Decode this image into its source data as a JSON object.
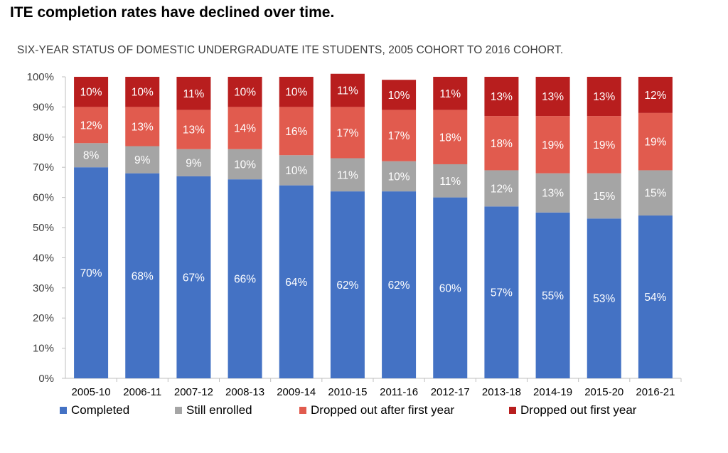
{
  "title": "ITE completion rates have declined over time.",
  "subtitle": "SIX-YEAR STATUS OF DOMESTIC UNDERGRADUATE ITE STUDENTS, 2005 COHORT TO 2016 COHORT.",
  "chart_data": {
    "type": "bar",
    "stacked": true,
    "categories": [
      "2005-10",
      "2006-11",
      "2007-12",
      "2008-13",
      "2009-14",
      "2010-15",
      "2011-16",
      "2012-17",
      "2013-18",
      "2014-19",
      "2015-20",
      "2016-21"
    ],
    "series": [
      {
        "name": "Completed",
        "color": "#4472C4",
        "values": [
          70,
          68,
          67,
          66,
          64,
          62,
          62,
          60,
          57,
          55,
          53,
          54
        ]
      },
      {
        "name": "Still enrolled",
        "color": "#A5A5A5",
        "values": [
          8,
          9,
          9,
          10,
          10,
          11,
          10,
          11,
          12,
          13,
          15,
          15
        ]
      },
      {
        "name": "Dropped out after first year",
        "color": "#E15B4E",
        "values": [
          12,
          13,
          13,
          14,
          16,
          17,
          17,
          18,
          18,
          19,
          19,
          19
        ]
      },
      {
        "name": "Dropped out first year",
        "color": "#B81E1E",
        "values": [
          10,
          10,
          11,
          10,
          10,
          11,
          10,
          11,
          13,
          13,
          13,
          12
        ]
      }
    ],
    "y_ticks": [
      "0%",
      "10%",
      "20%",
      "30%",
      "40%",
      "50%",
      "60%",
      "70%",
      "80%",
      "90%",
      "100%"
    ],
    "ylim": [
      0,
      100
    ],
    "value_suffix": "%",
    "grid": false,
    "legend_position": "bottom"
  }
}
